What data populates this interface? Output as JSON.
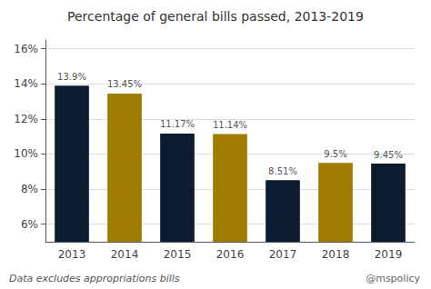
{
  "chart_data": {
    "type": "bar",
    "title": "Percentage of general bills passed, 2013-2019",
    "categories": [
      "2013",
      "2014",
      "2015",
      "2016",
      "2017",
      "2018",
      "2019"
    ],
    "values": [
      13.9,
      13.45,
      11.17,
      11.14,
      8.51,
      9.5,
      9.45
    ],
    "value_labels": [
      "13.9%",
      "13.45%",
      "11.17%",
      "11.14%",
      "8.51%",
      "9.5%",
      "9.45%"
    ],
    "data_labels": true,
    "colors": [
      "#0d1b2e",
      "#a07c00",
      "#0d1b2e",
      "#a07c00",
      "#0d1b2e",
      "#a07c00",
      "#0d1b2e"
    ],
    "ylim": [
      5,
      16.5
    ],
    "yticks": [
      {
        "value": 6,
        "label": "6%"
      },
      {
        "value": 8,
        "label": "8%"
      },
      {
        "value": 10,
        "label": "10%"
      },
      {
        "value": 12,
        "label": "12%"
      },
      {
        "value": 14,
        "label": "14%"
      },
      {
        "value": 16,
        "label": "16%"
      }
    ],
    "grid": true,
    "annotations": [
      "Data excludes appropriations bills",
      "@mspolicy"
    ]
  }
}
